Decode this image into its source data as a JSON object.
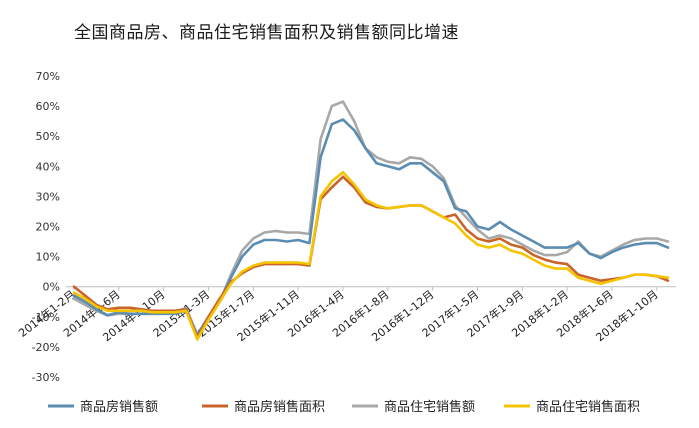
{
  "chart_data": {
    "type": "line",
    "title": "全国商品房、商品住宅销售面积及销售额同比增速",
    "xlabel": "",
    "ylabel": "",
    "ylim": [
      -30,
      70
    ],
    "yticks": [
      -30,
      -20,
      -10,
      0,
      10,
      20,
      30,
      40,
      50,
      60,
      70
    ],
    "ytick_labels": [
      "-30%",
      "-20%",
      "-10%",
      "0%",
      "10%",
      "20%",
      "30%",
      "40%",
      "50%",
      "60%",
      "70%"
    ],
    "grid": false,
    "legend": "bottom",
    "x": [
      "2014年1-2月",
      "2014年1-3月",
      "2014年1-4月",
      "2014年1-5月",
      "2014年1-6月",
      "2014年1-7月",
      "2014年1-8月",
      "2014年1-9月",
      "2014年1-10月",
      "2014年1-11月",
      "2014年1-12月",
      "2015年1-2月",
      "2015年1-3月",
      "2015年1-4月",
      "2015年1-5月",
      "2015年1-6月",
      "2015年1-7月",
      "2015年1-8月",
      "2015年1-9月",
      "2015年1-10月",
      "2015年1-11月",
      "2015年1-12月",
      "2016年1-2月",
      "2016年1-3月",
      "2016年1-4月",
      "2016年1-5月",
      "2016年1-6月",
      "2016年1-7月",
      "2016年1-8月",
      "2016年1-9月",
      "2016年1-10月",
      "2016年1-11月",
      "2016年1-12月",
      "2017年1-2月",
      "2017年1-3月",
      "2017年1-4月",
      "2017年1-5月",
      "2017年1-6月",
      "2017年1-7月",
      "2017年1-8月",
      "2017年1-9月",
      "2017年1-10月",
      "2017年1-11月",
      "2017年1-12月",
      "2018年1-2月",
      "2018年1-3月",
      "2018年1-4月",
      "2018年1-5月",
      "2018年1-6月",
      "2018年1-7月",
      "2018年1-8月",
      "2018年1-9月",
      "2018年1-10月",
      "2018年1-11月"
    ],
    "xtick_labels": [
      "2014年1-2月",
      "2014年1-6月",
      "2014年1-10月",
      "2015年1-3月",
      "2015年1-7月",
      "2015年1-11月",
      "2016年1-4月",
      "2016年1-8月",
      "2016年1-12月",
      "2017年1-5月",
      "2017年1-9月",
      "2018年1-2月",
      "2018年1-6月",
      "2018年1-10月"
    ],
    "series": [
      {
        "name": "商品房销售额",
        "color": "#5b8db3",
        "values": [
          -3,
          -5,
          -7.5,
          -9.5,
          -8.5,
          -9,
          -9,
          -9,
          -9,
          -9,
          -8,
          -16,
          -10,
          -5,
          3,
          10,
          14,
          15.5,
          15.5,
          15,
          15.5,
          14.5,
          43,
          54,
          55.5,
          52,
          46,
          41,
          40,
          39,
          41,
          41,
          38,
          35,
          26,
          25,
          20,
          19,
          21.5,
          19,
          17,
          15,
          13,
          13,
          13,
          14.5,
          11,
          9.5,
          11.5,
          13,
          14,
          14.5,
          14.5,
          13
        ]
      },
      {
        "name": "商品房销售面积",
        "color": "#c8642a",
        "values": [
          0,
          -3,
          -6,
          -7.5,
          -7,
          -7,
          -7.5,
          -8,
          -8,
          -8,
          -7.5,
          -17,
          -10,
          -4,
          1.5,
          4.5,
          6.5,
          7.5,
          7.5,
          7.5,
          7.5,
          7,
          29,
          33,
          36.5,
          33,
          28,
          26.5,
          26,
          26.5,
          27,
          27,
          25,
          23,
          24,
          19,
          16,
          15,
          16,
          14,
          13,
          10.5,
          9,
          8,
          7.5,
          4,
          3,
          2,
          2.5,
          3,
          4,
          4,
          3.5,
          2
        ]
      },
      {
        "name": "商品住宅销售额",
        "color": "#a8a8a8",
        "values": [
          -4,
          -6,
          -8,
          -9.5,
          -9,
          -9,
          -9,
          -9,
          -8.5,
          -8.5,
          -7,
          -16,
          -10,
          -5,
          4,
          12,
          16,
          18,
          18.5,
          18,
          18,
          17.5,
          49,
          60,
          61.5,
          55,
          46,
          43,
          41.5,
          41,
          43,
          42.5,
          40,
          36,
          27,
          23,
          19,
          16,
          17,
          16,
          14,
          12,
          10.5,
          10.5,
          11.5,
          15,
          11,
          10,
          12,
          14,
          15.5,
          16,
          16,
          15
        ]
      },
      {
        "name": "商品住宅销售面积",
        "color": "#f5c400",
        "values": [
          -2,
          -4,
          -6.5,
          -8,
          -8,
          -8,
          -8,
          -8.5,
          -8.5,
          -8.5,
          -8,
          -17.5,
          -11,
          -5,
          1,
          5,
          7,
          8,
          8,
          8,
          8,
          7.5,
          30,
          35,
          38,
          34,
          29,
          27,
          26,
          26.5,
          27,
          27,
          25,
          23,
          21,
          17,
          14,
          13,
          14,
          12,
          11,
          9,
          7,
          6,
          6,
          3,
          2,
          1,
          2,
          3,
          4,
          4,
          3.5,
          3
        ]
      }
    ]
  }
}
